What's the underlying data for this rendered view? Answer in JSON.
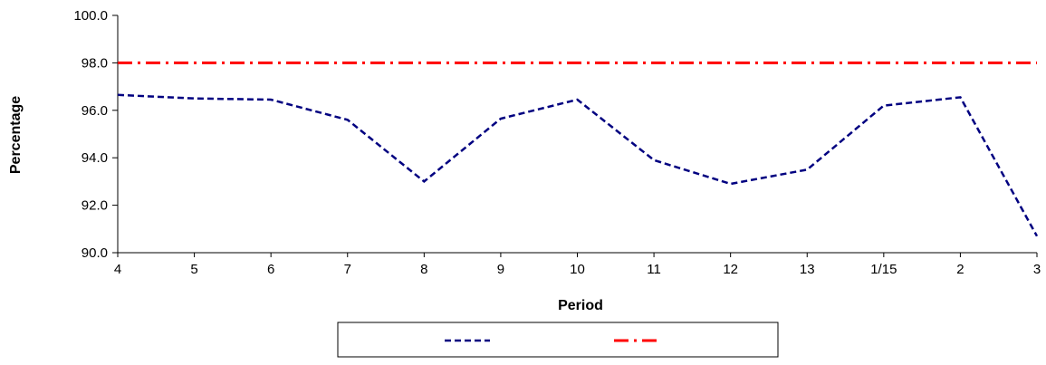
{
  "chart_data": {
    "type": "line",
    "title": "",
    "xlabel": "Period",
    "ylabel": "Percentage",
    "categories": [
      "4",
      "5",
      "6",
      "7",
      "8",
      "9",
      "10",
      "11",
      "12",
      "13",
      "1/15",
      "2",
      "3"
    ],
    "ylim": [
      90.0,
      100.0
    ],
    "yticks": [
      "90.0",
      "92.0",
      "94.0",
      "96.0",
      "98.0",
      "100.0"
    ],
    "grid": false,
    "legend_position": "bottom",
    "series": [
      {
        "values": [
          96.65,
          96.5,
          96.45,
          95.6,
          93.0,
          95.65,
          96.45,
          93.9,
          92.9,
          93.5,
          96.2,
          96.55,
          90.7
        ],
        "color": "#000080",
        "style": "dashed"
      },
      {
        "values": [
          98.0,
          98.0,
          98.0,
          98.0,
          98.0,
          98.0,
          98.0,
          98.0,
          98.0,
          98.0,
          98.0,
          98.0,
          98.0
        ],
        "color": "#ff0000",
        "style": "dash-dot"
      }
    ]
  }
}
